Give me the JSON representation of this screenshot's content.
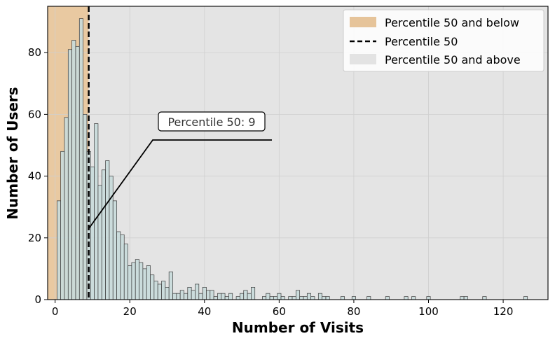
{
  "chart_data": {
    "type": "bar",
    "title": "",
    "xlabel": "Number of Visits",
    "ylabel": "Number of Users",
    "xlim": [
      -2,
      132
    ],
    "ylim": [
      0,
      95
    ],
    "xticks": [
      0,
      20,
      40,
      60,
      80,
      100,
      120
    ],
    "yticks": [
      0,
      20,
      40,
      60,
      80
    ],
    "grid": true,
    "bin_width": 1,
    "bins": [
      {
        "x": 1,
        "y": 32
      },
      {
        "x": 2,
        "y": 48
      },
      {
        "x": 3,
        "y": 59
      },
      {
        "x": 4,
        "y": 81
      },
      {
        "x": 5,
        "y": 84
      },
      {
        "x": 6,
        "y": 82
      },
      {
        "x": 7,
        "y": 91
      },
      {
        "x": 8,
        "y": 60
      },
      {
        "x": 9,
        "y": 48
      },
      {
        "x": 10,
        "y": 43
      },
      {
        "x": 11,
        "y": 57
      },
      {
        "x": 12,
        "y": 37
      },
      {
        "x": 13,
        "y": 42
      },
      {
        "x": 14,
        "y": 45
      },
      {
        "x": 15,
        "y": 40
      },
      {
        "x": 16,
        "y": 32
      },
      {
        "x": 17,
        "y": 22
      },
      {
        "x": 18,
        "y": 21
      },
      {
        "x": 19,
        "y": 18
      },
      {
        "x": 20,
        "y": 11
      },
      {
        "x": 21,
        "y": 12
      },
      {
        "x": 22,
        "y": 13
      },
      {
        "x": 23,
        "y": 12
      },
      {
        "x": 24,
        "y": 10
      },
      {
        "x": 25,
        "y": 11
      },
      {
        "x": 26,
        "y": 8
      },
      {
        "x": 27,
        "y": 6
      },
      {
        "x": 28,
        "y": 5
      },
      {
        "x": 29,
        "y": 6
      },
      {
        "x": 30,
        "y": 4
      },
      {
        "x": 31,
        "y": 9
      },
      {
        "x": 32,
        "y": 2
      },
      {
        "x": 33,
        "y": 2
      },
      {
        "x": 34,
        "y": 3
      },
      {
        "x": 35,
        "y": 2
      },
      {
        "x": 36,
        "y": 4
      },
      {
        "x": 37,
        "y": 3
      },
      {
        "x": 38,
        "y": 5
      },
      {
        "x": 39,
        "y": 2
      },
      {
        "x": 40,
        "y": 4
      },
      {
        "x": 41,
        "y": 3
      },
      {
        "x": 42,
        "y": 3
      },
      {
        "x": 43,
        "y": 1
      },
      {
        "x": 44,
        "y": 2
      },
      {
        "x": 45,
        "y": 2
      },
      {
        "x": 46,
        "y": 1
      },
      {
        "x": 47,
        "y": 2
      },
      {
        "x": 49,
        "y": 1
      },
      {
        "x": 50,
        "y": 2
      },
      {
        "x": 51,
        "y": 3
      },
      {
        "x": 52,
        "y": 2
      },
      {
        "x": 53,
        "y": 4
      },
      {
        "x": 56,
        "y": 1
      },
      {
        "x": 57,
        "y": 2
      },
      {
        "x": 58,
        "y": 1
      },
      {
        "x": 59,
        "y": 1
      },
      {
        "x": 60,
        "y": 2
      },
      {
        "x": 61,
        "y": 1
      },
      {
        "x": 63,
        "y": 1
      },
      {
        "x": 64,
        "y": 1
      },
      {
        "x": 65,
        "y": 3
      },
      {
        "x": 66,
        "y": 1
      },
      {
        "x": 67,
        "y": 1
      },
      {
        "x": 68,
        "y": 2
      },
      {
        "x": 69,
        "y": 1
      },
      {
        "x": 71,
        "y": 2
      },
      {
        "x": 72,
        "y": 1
      },
      {
        "x": 73,
        "y": 1
      },
      {
        "x": 77,
        "y": 1
      },
      {
        "x": 80,
        "y": 1
      },
      {
        "x": 84,
        "y": 1
      },
      {
        "x": 89,
        "y": 1
      },
      {
        "x": 94,
        "y": 1
      },
      {
        "x": 96,
        "y": 1
      },
      {
        "x": 100,
        "y": 1
      },
      {
        "x": 109,
        "y": 1
      },
      {
        "x": 110,
        "y": 1
      },
      {
        "x": 115,
        "y": 1
      },
      {
        "x": 126,
        "y": 1
      }
    ],
    "percentile": {
      "label": "Percentile 50",
      "value": 9
    },
    "annotation": {
      "text": "Percentile 50: 9",
      "point": [
        9,
        23
      ]
    },
    "legend": {
      "position": "top-right",
      "entries": [
        {
          "label": "Percentile 50 and below",
          "kind": "patch",
          "color": "#e6c49a"
        },
        {
          "label": "Percentile 50",
          "kind": "dashed-line",
          "color": "#000000"
        },
        {
          "label": "Percentile 50 and above",
          "kind": "patch",
          "color": "#e3e3e3"
        }
      ]
    },
    "colors": {
      "below_region": "#e9c9a1",
      "above_region": "#e4e4e4",
      "bar_fill": "#c8dada",
      "bar_edge": "#3a3a3a",
      "grid": "#cfcfcf"
    }
  }
}
